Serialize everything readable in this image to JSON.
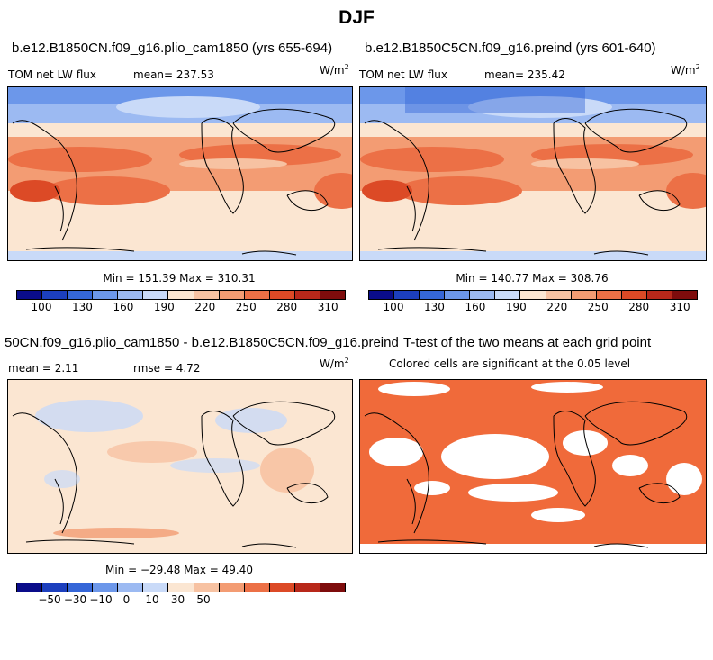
{
  "title": "DJF",
  "palette": [
    "#0a0c8a",
    "#1c3fbe",
    "#3566d8",
    "#6c97ea",
    "#9cbaf2",
    "#c9daf8",
    "#fbe6d2",
    "#f7c2a2",
    "#f39c73",
    "#ec7046",
    "#dc4a26",
    "#b8281a",
    "#7e0c0c"
  ],
  "fill_color": "#f06a3a",
  "panels": {
    "top_left": {
      "title": "b.e12.B1850CN.f09_g16.plio_cam1850 (yrs 655-694)",
      "left_text": "TOM net LW flux",
      "mean_label": "mean= 237.53",
      "units": "W/m",
      "units_sup": "2",
      "stats": "Min = 151.39 Max = 310.31",
      "ticks": [
        "100",
        "130",
        "160",
        "190",
        "220",
        "250",
        "280",
        "310"
      ]
    },
    "top_right": {
      "title": "b.e12.B1850C5CN.f09_g16.preind (yrs 601-640)",
      "left_text": "TOM net LW flux",
      "mean_label": "mean= 235.42",
      "units": "W/m",
      "units_sup": "2",
      "stats": "Min = 140.77 Max = 308.76",
      "ticks": [
        "100",
        "130",
        "160",
        "190",
        "220",
        "250",
        "280",
        "310"
      ]
    },
    "bottom_left": {
      "title": "50CN.f09_g16.plio_cam1850 - b.e12.B1850C5CN.f09_g16.preind",
      "mean_label": "mean =   2.11",
      "rmse_label": "rmse =   4.72",
      "units": "W/m",
      "units_sup": "2",
      "stats": "Min = −29.48 Max = 49.40",
      "ticks": [
        "−50",
        "−30",
        "−10",
        "0",
        "10",
        "30",
        "50"
      ]
    },
    "bottom_right": {
      "title": "T-test of the two means at each grid point",
      "subtitle": "Colored cells are significant at the 0.05 level"
    }
  }
}
